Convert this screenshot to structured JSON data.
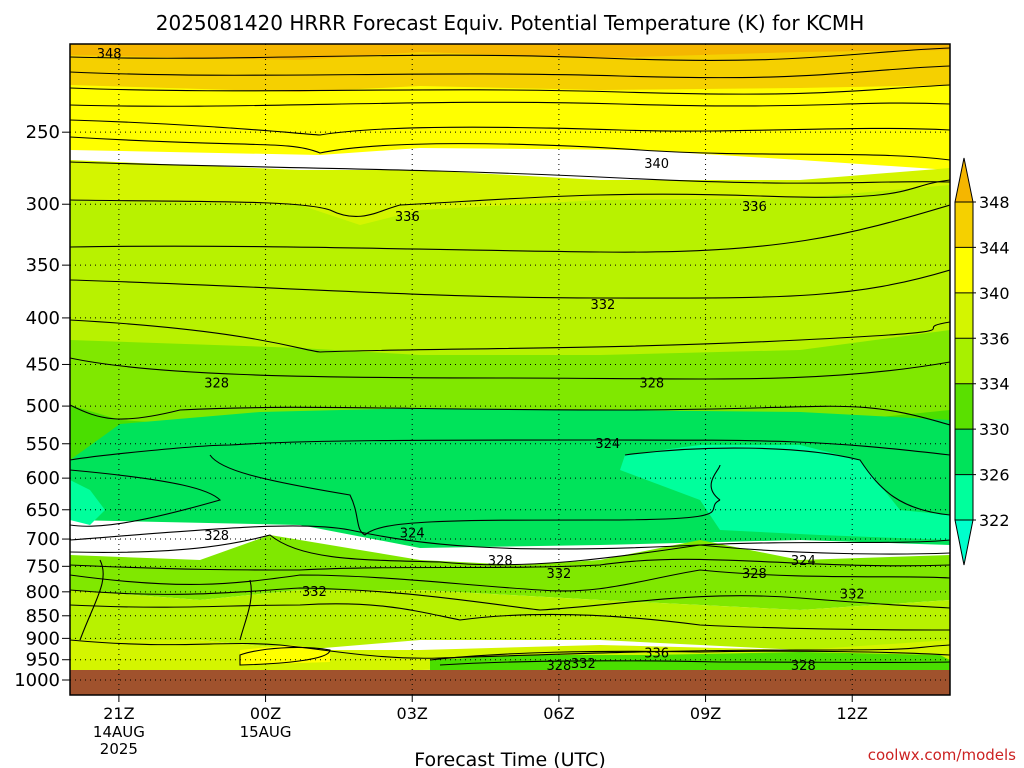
{
  "chart_data": {
    "type": "contour",
    "title": "2025081420 HRRR Forecast Equiv. Potential Temperature (K) for KCMH",
    "xlabel": "Forecast Time (UTC)",
    "ylabel": "",
    "credit": "coolwx.com/models",
    "x_ticks": [
      {
        "label": "21Z",
        "hour": 21,
        "sub": [
          "14AUG",
          "2025"
        ]
      },
      {
        "label": "00Z",
        "hour": 24,
        "sub": [
          "15AUG"
        ]
      },
      {
        "label": "03Z",
        "hour": 27,
        "sub": []
      },
      {
        "label": "06Z",
        "hour": 30,
        "sub": []
      },
      {
        "label": "09Z",
        "hour": 33,
        "sub": []
      },
      {
        "label": "12Z",
        "hour": 36,
        "sub": []
      }
    ],
    "xlim": [
      20,
      38
    ],
    "y_ticks": [
      "250",
      "300",
      "350",
      "400",
      "450",
      "500",
      "550",
      "600",
      "650",
      "700",
      "750",
      "800",
      "850",
      "900",
      "950",
      "1000"
    ],
    "ylim": [
      200,
      1000
    ],
    "y_scale": "log",
    "grid": true,
    "legend": {
      "placement": "right",
      "levels": [
        "348",
        "344",
        "340",
        "336",
        "334",
        "330",
        "326",
        "322"
      ],
      "colors": [
        "#f5b600",
        "#f5d000",
        "#ffff00",
        "#d4f500",
        "#a8f000",
        "#5ae000",
        "#00e35a",
        "#00ff9c",
        "#00ffcc"
      ]
    },
    "contour_labels": [
      {
        "text": "348",
        "hour": 20.8,
        "p": 205
      },
      {
        "text": "340",
        "hour": 32.0,
        "p": 271
      },
      {
        "text": "336",
        "hour": 26.9,
        "p": 310
      },
      {
        "text": "336",
        "hour": 34.0,
        "p": 302
      },
      {
        "text": "332",
        "hour": 30.9,
        "p": 387
      },
      {
        "text": "328",
        "hour": 23.0,
        "p": 472
      },
      {
        "text": "328",
        "hour": 31.9,
        "p": 472
      },
      {
        "text": "324",
        "hour": 31.0,
        "p": 550
      },
      {
        "text": "324",
        "hour": 27.0,
        "p": 690
      },
      {
        "text": "328",
        "hour": 23.0,
        "p": 695
      },
      {
        "text": "328",
        "hour": 28.8,
        "p": 740
      },
      {
        "text": "332",
        "hour": 30.0,
        "p": 765
      },
      {
        "text": "324",
        "hour": 35.0,
        "p": 740
      },
      {
        "text": "328",
        "hour": 34.0,
        "p": 765
      },
      {
        "text": "332",
        "hour": 25.0,
        "p": 800
      },
      {
        "text": "332",
        "hour": 36.0,
        "p": 805
      },
      {
        "text": "336",
        "hour": 32.0,
        "p": 935
      },
      {
        "text": "332",
        "hour": 30.5,
        "p": 960
      },
      {
        "text": "328",
        "hour": 30.0,
        "p": 965
      },
      {
        "text": "328",
        "hour": 35.0,
        "p": 965
      }
    ]
  }
}
